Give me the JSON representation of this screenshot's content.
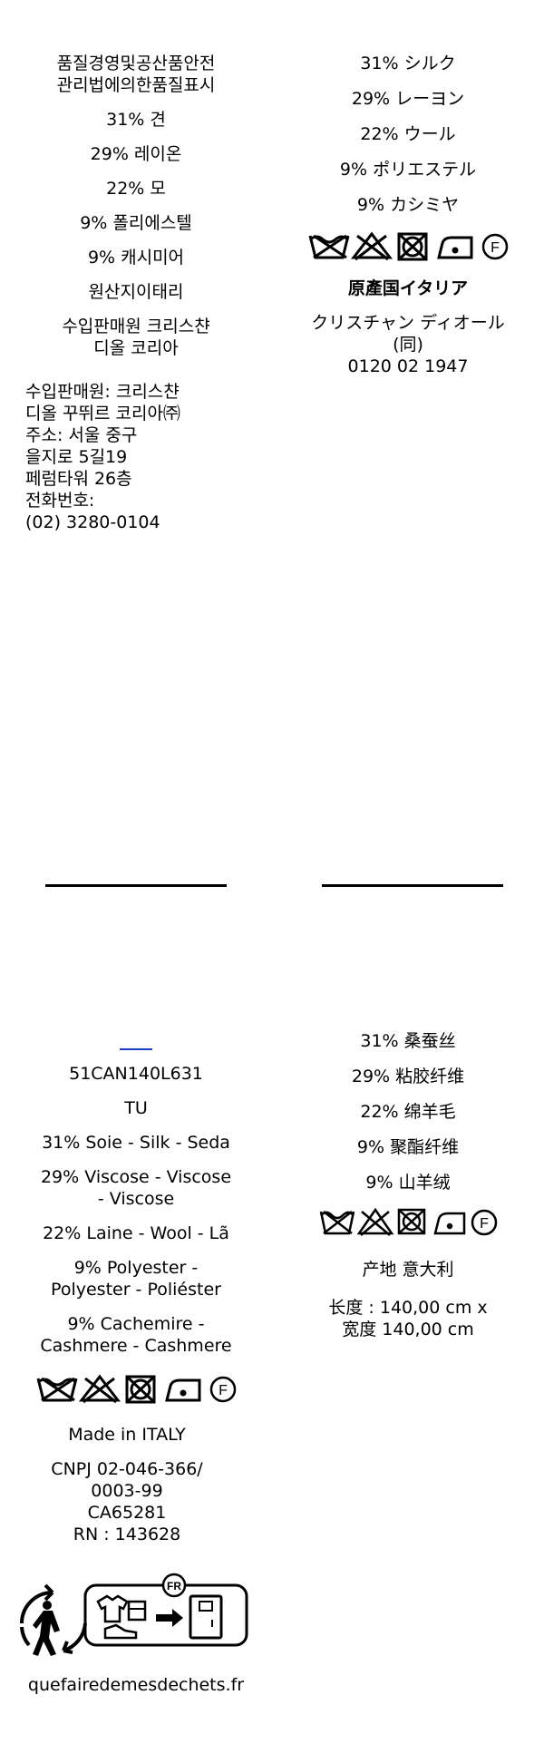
{
  "top_left": {
    "header_line1": "품질경영및공산품안전",
    "header_line2": "관리법에의한품질표시",
    "silk": "31% 견",
    "rayon": "29% 레이온",
    "wool": "22% 모",
    "polyester": "9% 폴리에스텔",
    "cashmere": "9% 캐시미어",
    "origin": "원산지이태리",
    "importer_line1": "수입판매원 크리스챤",
    "importer_line2": "디올 코리아",
    "address": [
      "수입판매원: 크리스챤",
      "디올 꾸뛰르 코리아㈜",
      "주소: 서울 중구",
      "을지로 5길19",
      "페럼타워 26층",
      "전화번호:",
      "(02) 3280-0104"
    ]
  },
  "top_right": {
    "silk": "31% シルク",
    "rayon": "29% レーヨン",
    "wool": "22% ウール",
    "polyester": "9% ポリエステル",
    "cashmere": "9% カシミヤ",
    "origin": "原產国イタリア",
    "maker_line1": "クリスチャン ディオール",
    "maker_line2": "(同)",
    "phone": "0120 02 1947"
  },
  "bottom_left": {
    "code": "51CAN140L631",
    "size": "TU",
    "silk": "31% Soie - Silk - Seda",
    "viscose_line1": "29% Viscose - Viscose",
    "viscose_line2": "- Viscose",
    "wool": "22% Laine - Wool - Lã",
    "polyester_line1": "9% Polyester -",
    "polyester_line2": "Polyester - Poliéster",
    "cashmere_line1": "9% Cachemire -",
    "cashmere_line2": "Cashmere - Cashmere",
    "made_in": "Made in ITALY",
    "cnpj_line1": "CNPJ  02-046-366/",
    "cnpj_line2": "0003-99",
    "ca": "CA65281",
    "rn": "RN : 143628",
    "recycle_badge": "FR",
    "recycle_site": "quefairedemesdechets.fr"
  },
  "bottom_right": {
    "silk": "31% 桑蚕丝",
    "viscose": "29% 粘胶纤维",
    "wool": "22% 绵羊毛",
    "polyester": "9% 聚酯纤维",
    "cashmere": "9% 山羊绒",
    "origin": "产地 意大利",
    "length": "长度 : 140,00 cm x",
    "width": "宽度 140,00 cm"
  },
  "icons": {
    "wash": "do-not-wash-icon",
    "bleach": "do-not-bleach-icon",
    "dry": "do-not-tumble-dry-icon",
    "iron": "iron-low-icon",
    "dryclean": "dry-clean-f-icon",
    "recycle": "triman-recycle-icon"
  }
}
